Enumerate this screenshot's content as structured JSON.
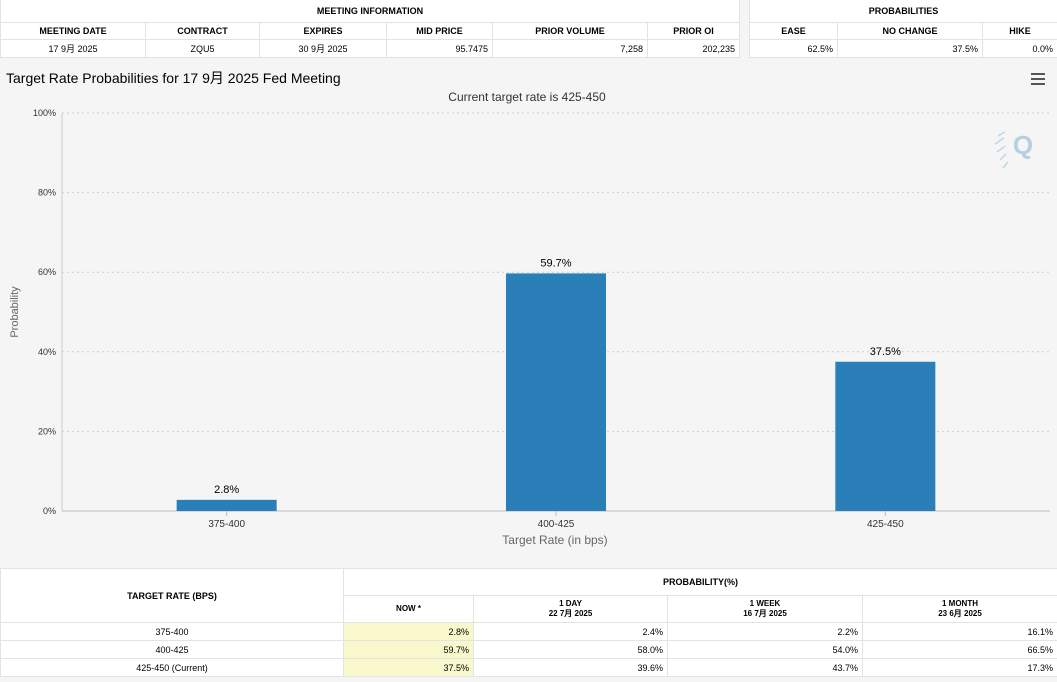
{
  "meeting_info": {
    "title": "MEETING INFORMATION",
    "headers": [
      "MEETING DATE",
      "CONTRACT",
      "EXPIRES",
      "MID PRICE",
      "PRIOR VOLUME",
      "PRIOR OI"
    ],
    "values": [
      "17 9月 2025",
      "ZQU5",
      "30 9月 2025",
      "95.7475",
      "7,258",
      "202,235"
    ]
  },
  "probabilities": {
    "title": "PROBABILITIES",
    "headers": [
      "EASE",
      "NO CHANGE",
      "HIKE"
    ],
    "values": [
      "62.5%",
      "37.5%",
      "0.0%"
    ]
  },
  "chart_data": {
    "type": "bar",
    "title": "Target Rate Probabilities for 17 9月 2025 Fed Meeting",
    "subtitle": "Current target rate is 425-450",
    "xlabel": "Target Rate (in bps)",
    "ylabel": "Probability",
    "categories": [
      "375-400",
      "400-425",
      "425-450"
    ],
    "values": [
      2.8,
      59.7,
      37.5
    ],
    "data_labels": [
      "2.8%",
      "59.7%",
      "37.5%"
    ],
    "ylim": [
      0,
      100
    ],
    "yticks": [
      0,
      20,
      40,
      60,
      80,
      100
    ],
    "ytick_labels": [
      "0%",
      "20%",
      "40%",
      "60%",
      "80%",
      "100%"
    ],
    "grid": true,
    "bar_color": "#2b7fb8",
    "legend": "none"
  },
  "bottom_table": {
    "target_rate_header": "TARGET RATE (BPS)",
    "probability_header": "PROBABILITY(%)",
    "columns": [
      {
        "label": "NOW *",
        "date": ""
      },
      {
        "label": "1 DAY",
        "date": "22 7月 2025"
      },
      {
        "label": "1 WEEK",
        "date": "16 7月 2025"
      },
      {
        "label": "1 MONTH",
        "date": "23 6月 2025"
      }
    ],
    "rows": [
      {
        "rate": "375-400",
        "values": [
          "2.8%",
          "2.4%",
          "2.2%",
          "16.1%"
        ]
      },
      {
        "rate": "400-425",
        "values": [
          "59.7%",
          "58.0%",
          "54.0%",
          "66.5%"
        ]
      },
      {
        "rate": "425-450 (Current)",
        "values": [
          "37.5%",
          "39.6%",
          "43.7%",
          "17.3%"
        ]
      }
    ]
  },
  "colors": {
    "bar": "#2b7fb8",
    "highlight": "#f8f8cc",
    "background": "#f5f5f5"
  },
  "icons": [
    "menu-icon",
    "quikstrike-logo-icon"
  ]
}
